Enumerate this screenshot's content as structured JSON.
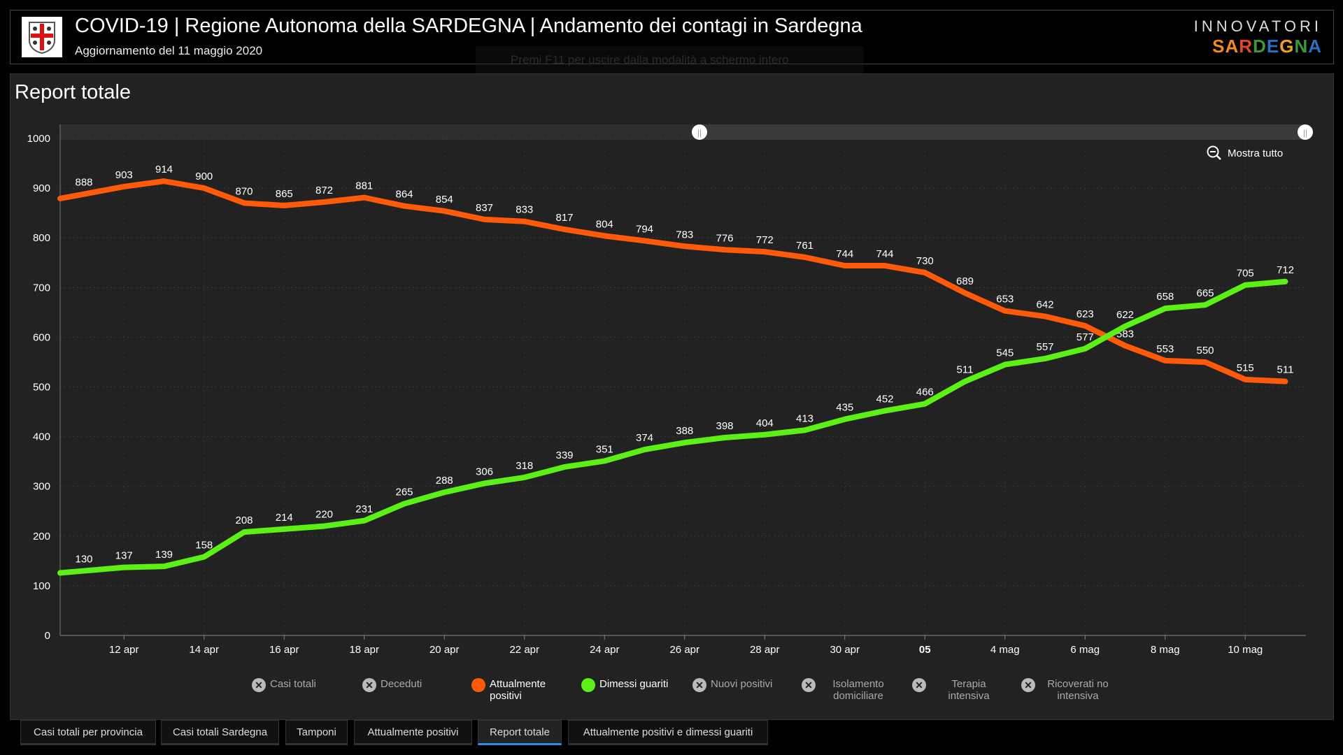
{
  "header": {
    "title": "COVID-19 | Regione Autonoma della SARDEGNA | Andamento dei contagi in Sardegna",
    "subtitle": "Aggiornamento del 11 maggio 2020",
    "brand_top": "INNOVATORI",
    "brand_bottom": "SARDEGNA",
    "fullscreen_hint": "Premi  F11  per uscire dalla modalità a schermo intero"
  },
  "panel": {
    "title": "Report totale",
    "zoom_reset": "Mostra tutto"
  },
  "colors": {
    "attualmente": "#ff5a0a",
    "dimessi": "#5cf016",
    "disabled": "#bbbbbb"
  },
  "chart_data": {
    "type": "line",
    "title": "Report totale",
    "x": [
      "11 apr",
      "12 apr",
      "13 apr",
      "14 apr",
      "15 apr",
      "16 apr",
      "17 apr",
      "18 apr",
      "19 apr",
      "20 apr",
      "21 apr",
      "22 apr",
      "23 apr",
      "24 apr",
      "25 apr",
      "26 apr",
      "27 apr",
      "28 apr",
      "29 apr",
      "30 apr",
      "1 mag",
      "2 mag",
      "3 mag",
      "4 mag",
      "5 mag",
      "6 mag",
      "7 mag",
      "8 mag",
      "9 mag",
      "10 mag",
      "11 mag"
    ],
    "xticks": [
      {
        "i": 1,
        "label": "12 apr"
      },
      {
        "i": 3,
        "label": "14 apr"
      },
      {
        "i": 5,
        "label": "16 apr"
      },
      {
        "i": 7,
        "label": "18 apr"
      },
      {
        "i": 9,
        "label": "20 apr"
      },
      {
        "i": 11,
        "label": "22 apr"
      },
      {
        "i": 13,
        "label": "24 apr"
      },
      {
        "i": 15,
        "label": "26 apr"
      },
      {
        "i": 17,
        "label": "28 apr"
      },
      {
        "i": 19,
        "label": "30 apr"
      },
      {
        "i": 21,
        "label": "05"
      },
      {
        "i": 23,
        "label": "4 mag"
      },
      {
        "i": 25,
        "label": "6 mag"
      },
      {
        "i": 27,
        "label": "8 mag"
      },
      {
        "i": 29,
        "label": "10 mag"
      }
    ],
    "yticks": [
      0,
      100,
      200,
      300,
      400,
      500,
      600,
      700,
      800,
      900,
      1000
    ],
    "ylim": [
      0,
      1000
    ],
    "grid": true,
    "series": [
      {
        "name": "Attualmente positivi",
        "color": "#ff5a0a",
        "values": [
          888,
          903,
          914,
          900,
          870,
          865,
          872,
          881,
          864,
          854,
          837,
          833,
          817,
          804,
          794,
          783,
          776,
          772,
          761,
          744,
          744,
          730,
          689,
          653,
          642,
          623,
          583,
          553,
          550,
          515,
          511
        ]
      },
      {
        "name": "Dimessi guariti",
        "color": "#5cf016",
        "values": [
          130,
          137,
          139,
          158,
          208,
          214,
          220,
          231,
          265,
          288,
          306,
          318,
          339,
          351,
          374,
          388,
          398,
          404,
          413,
          435,
          452,
          466,
          511,
          545,
          557,
          577,
          622,
          658,
          665,
          705,
          712
        ]
      }
    ],
    "legend": [
      {
        "label": "Casi totali",
        "active": false
      },
      {
        "label": "Deceduti",
        "active": false
      },
      {
        "label": "Attualmente positivi",
        "active": true,
        "color": "#ff5a0a"
      },
      {
        "label": "Dimessi guariti",
        "active": true,
        "color": "#5cf016"
      },
      {
        "label": "Nuovi positivi",
        "active": false
      },
      {
        "label": "Isolamento domiciliare",
        "active": false
      },
      {
        "label": "Terapia intensiva",
        "active": false
      },
      {
        "label": "Ricoverati no intensiva",
        "active": false
      }
    ]
  },
  "tabs": [
    {
      "label": "Casi totali per provincia",
      "active": false
    },
    {
      "label": "Casi totali Sardegna",
      "active": false
    },
    {
      "label": "Tamponi",
      "active": false
    },
    {
      "label": "Attualmente positivi",
      "active": false
    },
    {
      "label": "Report totale",
      "active": true
    },
    {
      "label": "Attualmente positivi e dimessi guariti",
      "active": false
    }
  ]
}
